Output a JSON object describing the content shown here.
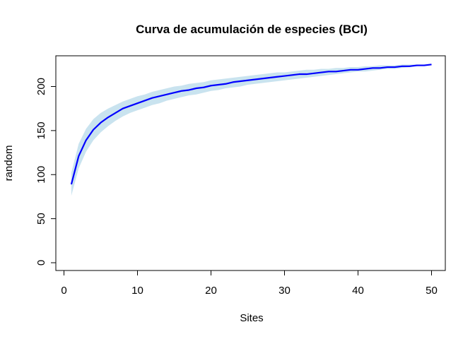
{
  "chart_data": {
    "type": "area",
    "title": "Curva de acumulación de especies (BCI)",
    "xlabel": "Sites",
    "ylabel": "random",
    "xlim": [
      1,
      50
    ],
    "ylim": [
      0,
      225
    ],
    "x_ticks": [
      "0",
      "10",
      "20",
      "30",
      "40",
      "50"
    ],
    "y_ticks": [
      "0",
      "50",
      "100",
      "150",
      "200"
    ],
    "grid": false,
    "colors": {
      "line": "#0000ff",
      "band": "#c9e3ef",
      "axis": "#000000"
    },
    "series": [
      {
        "x": [
          1,
          2,
          3,
          4,
          5,
          6,
          7,
          8,
          9,
          10,
          11,
          12,
          13,
          14,
          15,
          16,
          17,
          18,
          19,
          20,
          21,
          22,
          23,
          24,
          25,
          26,
          27,
          28,
          29,
          30,
          31,
          32,
          33,
          34,
          35,
          36,
          37,
          38,
          39,
          40,
          41,
          42,
          43,
          44,
          45,
          46,
          47,
          48,
          49,
          50
        ],
        "mean": [
          89,
          121,
          139,
          151,
          159,
          165,
          170,
          175,
          178,
          181,
          184,
          187,
          189,
          191,
          193,
          195,
          196,
          198,
          199,
          201,
          202,
          203,
          205,
          206,
          207,
          208,
          209,
          210,
          211,
          212,
          213,
          214,
          214,
          215,
          216,
          217,
          217,
          218,
          219,
          219,
          220,
          221,
          221,
          222,
          222,
          223,
          223,
          224,
          224,
          225
        ],
        "lower": [
          76,
          107,
          126,
          139,
          148,
          155,
          161,
          166,
          170,
          173,
          176,
          179,
          181,
          184,
          186,
          188,
          190,
          191,
          193,
          195,
          196,
          198,
          199,
          200,
          202,
          203,
          204,
          205,
          206,
          207,
          208,
          209,
          210,
          211,
          212,
          213,
          214,
          215,
          216,
          217,
          217,
          218,
          219,
          220,
          220,
          221,
          222,
          223,
          224,
          225
        ],
        "upper": [
          102,
          135,
          152,
          163,
          170,
          175,
          179,
          183,
          186,
          189,
          191,
          194,
          196,
          198,
          200,
          201,
          203,
          204,
          205,
          207,
          208,
          209,
          210,
          211,
          212,
          213,
          214,
          215,
          216,
          216,
          217,
          218,
          219,
          219,
          220,
          220,
          221,
          221,
          222,
          222,
          223,
          223,
          224,
          224,
          224,
          225,
          225,
          225,
          225,
          225
        ]
      }
    ]
  }
}
